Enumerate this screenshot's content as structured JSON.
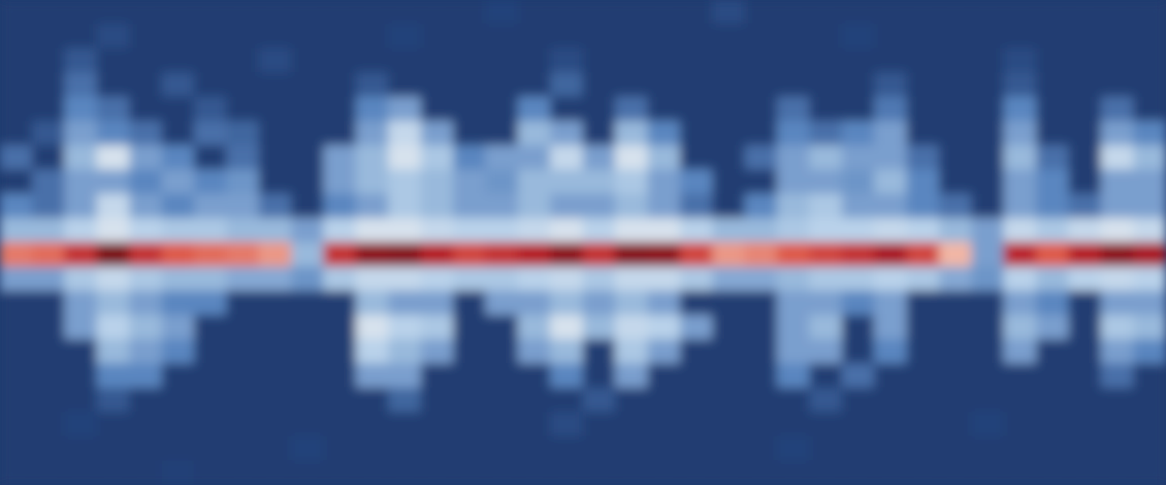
{
  "chart_data": {
    "type": "heatmap",
    "tick_labels": false,
    "color_range": [
      0,
      1
    ],
    "cells": [
      [
        0.05,
        0.05,
        0.05,
        0.05,
        0.05,
        0.05,
        0.05,
        0.05,
        0.05,
        0.05,
        0.05,
        0.05,
        0.05,
        0.05,
        0.05,
        0.1,
        0.05,
        0.05,
        0.05,
        0.05,
        0.05,
        0.05,
        0.12,
        0.05,
        0.05,
        0.05,
        0.05,
        0.05,
        0.05,
        0.05,
        0.05,
        0.05,
        0.05,
        0.05,
        0.05,
        0.05
      ],
      [
        0.05,
        0.05,
        0.05,
        0.12,
        0.05,
        0.05,
        0.05,
        0.05,
        0.05,
        0.05,
        0.05,
        0.05,
        0.1,
        0.05,
        0.05,
        0.05,
        0.05,
        0.05,
        0.05,
        0.05,
        0.05,
        0.05,
        0.05,
        0.05,
        0.05,
        0.05,
        0.1,
        0.05,
        0.05,
        0.05,
        0.05,
        0.05,
        0.05,
        0.05,
        0.05,
        0.05
      ],
      [
        0.05,
        0.05,
        0.15,
        0.05,
        0.05,
        0.05,
        0.05,
        0.05,
        0.12,
        0.05,
        0.05,
        0.05,
        0.05,
        0.05,
        0.05,
        0.05,
        0.05,
        0.12,
        0.05,
        0.05,
        0.05,
        0.05,
        0.05,
        0.05,
        0.05,
        0.05,
        0.05,
        0.05,
        0.05,
        0.05,
        0.05,
        0.12,
        0.05,
        0.05,
        0.05,
        0.05
      ],
      [
        0.05,
        0.05,
        0.2,
        0.05,
        0.05,
        0.15,
        0.05,
        0.05,
        0.05,
        0.05,
        0.05,
        0.15,
        0.05,
        0.05,
        0.05,
        0.05,
        0.05,
        0.18,
        0.05,
        0.05,
        0.05,
        0.05,
        0.05,
        0.05,
        0.05,
        0.05,
        0.05,
        0.15,
        0.05,
        0.05,
        0.05,
        0.15,
        0.05,
        0.05,
        0.05,
        0.05
      ],
      [
        0.05,
        0.05,
        0.25,
        0.2,
        0.05,
        0.05,
        0.15,
        0.05,
        0.05,
        0.05,
        0.05,
        0.25,
        0.3,
        0.05,
        0.05,
        0.05,
        0.25,
        0.05,
        0.05,
        0.2,
        0.05,
        0.05,
        0.05,
        0.05,
        0.2,
        0.05,
        0.05,
        0.22,
        0.05,
        0.05,
        0.05,
        0.25,
        0.05,
        0.05,
        0.2,
        0.05
      ],
      [
        0.05,
        0.15,
        0.3,
        0.25,
        0.2,
        0.05,
        0.2,
        0.18,
        0.05,
        0.05,
        0.05,
        0.3,
        0.42,
        0.3,
        0.05,
        0.05,
        0.35,
        0.3,
        0.05,
        0.35,
        0.25,
        0.05,
        0.05,
        0.05,
        0.25,
        0.2,
        0.25,
        0.3,
        0.05,
        0.05,
        0.05,
        0.3,
        0.05,
        0.05,
        0.3,
        0.25
      ],
      [
        0.2,
        0.05,
        0.35,
        0.45,
        0.3,
        0.25,
        0.05,
        0.2,
        0.05,
        0.05,
        0.3,
        0.35,
        0.45,
        0.38,
        0.25,
        0.3,
        0.3,
        0.42,
        0.3,
        0.45,
        0.35,
        0.05,
        0.05,
        0.2,
        0.3,
        0.35,
        0.3,
        0.3,
        0.2,
        0.05,
        0.05,
        0.35,
        0.2,
        0.05,
        0.42,
        0.35
      ],
      [
        0.05,
        0.2,
        0.3,
        0.3,
        0.25,
        0.3,
        0.25,
        0.28,
        0.05,
        0.05,
        0.3,
        0.35,
        0.38,
        0.35,
        0.3,
        0.28,
        0.35,
        0.35,
        0.35,
        0.38,
        0.3,
        0.25,
        0.05,
        0.05,
        0.3,
        0.3,
        0.28,
        0.35,
        0.25,
        0.05,
        0.05,
        0.3,
        0.25,
        0.05,
        0.3,
        0.3
      ],
      [
        0.25,
        0.2,
        0.3,
        0.42,
        0.3,
        0.25,
        0.3,
        0.3,
        0.2,
        0.05,
        0.25,
        0.3,
        0.38,
        0.35,
        0.3,
        0.3,
        0.35,
        0.3,
        0.3,
        0.35,
        0.3,
        0.2,
        0.05,
        0.25,
        0.35,
        0.38,
        0.3,
        0.3,
        0.25,
        0.2,
        0.05,
        0.3,
        0.25,
        0.2,
        0.3,
        0.3
      ],
      [
        0.35,
        0.35,
        0.4,
        0.45,
        0.4,
        0.38,
        0.38,
        0.35,
        0.35,
        0.3,
        0.4,
        0.45,
        0.45,
        0.42,
        0.4,
        0.4,
        0.42,
        0.45,
        0.4,
        0.45,
        0.45,
        0.4,
        0.35,
        0.35,
        0.38,
        0.4,
        0.4,
        0.42,
        0.4,
        0.35,
        0.3,
        0.42,
        0.38,
        0.42,
        0.45,
        0.42
      ],
      [
        0.7,
        0.72,
        0.85,
        1.0,
        0.85,
        0.75,
        0.72,
        0.7,
        0.65,
        0.35,
        0.85,
        0.97,
        0.98,
        0.9,
        0.8,
        0.85,
        0.9,
        0.97,
        0.85,
        0.98,
        0.97,
        0.8,
        0.65,
        0.68,
        0.75,
        0.8,
        0.85,
        0.92,
        0.8,
        0.6,
        0.3,
        0.88,
        0.75,
        0.9,
        0.97,
        0.92
      ],
      [
        0.3,
        0.3,
        0.38,
        0.42,
        0.38,
        0.35,
        0.35,
        0.32,
        0.32,
        0.28,
        0.38,
        0.42,
        0.42,
        0.4,
        0.38,
        0.38,
        0.4,
        0.42,
        0.38,
        0.42,
        0.42,
        0.38,
        0.32,
        0.32,
        0.35,
        0.38,
        0.38,
        0.4,
        0.38,
        0.32,
        0.28,
        0.4,
        0.35,
        0.4,
        0.42,
        0.4
      ],
      [
        0.05,
        0.05,
        0.3,
        0.35,
        0.3,
        0.25,
        0.25,
        0.05,
        0.05,
        0.05,
        0.05,
        0.35,
        0.3,
        0.3,
        0.05,
        0.3,
        0.3,
        0.35,
        0.3,
        0.35,
        0.3,
        0.05,
        0.05,
        0.05,
        0.3,
        0.3,
        0.25,
        0.3,
        0.05,
        0.05,
        0.05,
        0.3,
        0.25,
        0.05,
        0.3,
        0.3
      ],
      [
        0.05,
        0.05,
        0.3,
        0.4,
        0.35,
        0.3,
        0.05,
        0.05,
        0.05,
        0.05,
        0.05,
        0.45,
        0.4,
        0.38,
        0.05,
        0.05,
        0.35,
        0.45,
        0.35,
        0.42,
        0.4,
        0.3,
        0.05,
        0.05,
        0.3,
        0.35,
        0.05,
        0.3,
        0.05,
        0.05,
        0.05,
        0.35,
        0.3,
        0.05,
        0.38,
        0.35
      ],
      [
        0.05,
        0.05,
        0.05,
        0.35,
        0.3,
        0.25,
        0.05,
        0.05,
        0.05,
        0.05,
        0.05,
        0.4,
        0.35,
        0.3,
        0.05,
        0.05,
        0.3,
        0.35,
        0.05,
        0.38,
        0.3,
        0.05,
        0.05,
        0.05,
        0.3,
        0.3,
        0.05,
        0.25,
        0.05,
        0.05,
        0.05,
        0.3,
        0.05,
        0.05,
        0.3,
        0.25
      ],
      [
        0.05,
        0.05,
        0.05,
        0.25,
        0.25,
        0.05,
        0.05,
        0.05,
        0.05,
        0.05,
        0.05,
        0.3,
        0.3,
        0.05,
        0.05,
        0.05,
        0.05,
        0.25,
        0.05,
        0.3,
        0.05,
        0.05,
        0.05,
        0.05,
        0.25,
        0.05,
        0.2,
        0.05,
        0.05,
        0.05,
        0.05,
        0.05,
        0.05,
        0.05,
        0.2,
        0.05
      ],
      [
        0.05,
        0.05,
        0.05,
        0.15,
        0.05,
        0.05,
        0.05,
        0.05,
        0.05,
        0.05,
        0.05,
        0.05,
        0.18,
        0.05,
        0.05,
        0.05,
        0.05,
        0.05,
        0.15,
        0.05,
        0.05,
        0.05,
        0.05,
        0.05,
        0.05,
        0.15,
        0.05,
        0.05,
        0.05,
        0.05,
        0.05,
        0.05,
        0.05,
        0.05,
        0.05,
        0.05
      ],
      [
        0.05,
        0.05,
        0.1,
        0.05,
        0.05,
        0.05,
        0.05,
        0.05,
        0.05,
        0.05,
        0.05,
        0.05,
        0.05,
        0.05,
        0.05,
        0.05,
        0.05,
        0.12,
        0.05,
        0.05,
        0.05,
        0.05,
        0.05,
        0.05,
        0.05,
        0.05,
        0.05,
        0.05,
        0.05,
        0.05,
        0.1,
        0.05,
        0.05,
        0.05,
        0.05,
        0.05
      ],
      [
        0.05,
        0.05,
        0.05,
        0.05,
        0.05,
        0.05,
        0.05,
        0.05,
        0.05,
        0.1,
        0.05,
        0.05,
        0.05,
        0.05,
        0.05,
        0.05,
        0.05,
        0.05,
        0.05,
        0.05,
        0.05,
        0.05,
        0.05,
        0.05,
        0.1,
        0.05,
        0.05,
        0.05,
        0.05,
        0.05,
        0.05,
        0.05,
        0.05,
        0.05,
        0.05,
        0.05
      ],
      [
        0.05,
        0.05,
        0.05,
        0.05,
        0.05,
        0.08,
        0.05,
        0.05,
        0.05,
        0.05,
        0.05,
        0.05,
        0.05,
        0.05,
        0.05,
        0.05,
        0.05,
        0.05,
        0.05,
        0.05,
        0.05,
        0.05,
        0.05,
        0.05,
        0.05,
        0.05,
        0.05,
        0.05,
        0.05,
        0.05,
        0.05,
        0.05,
        0.05,
        0.05,
        0.05,
        0.05
      ]
    ]
  }
}
